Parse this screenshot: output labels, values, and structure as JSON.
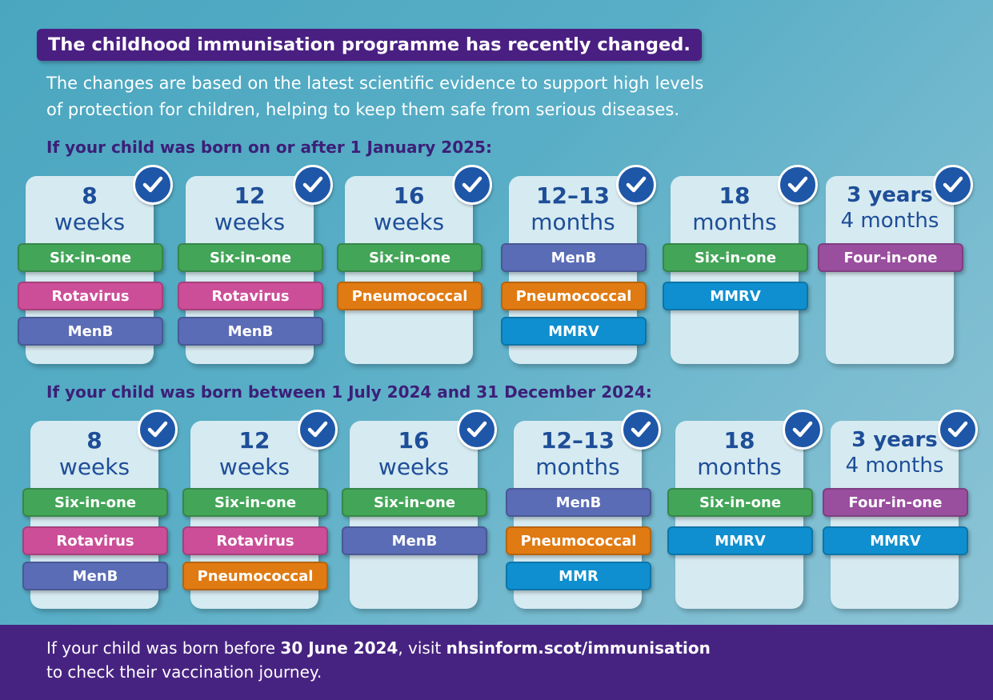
{
  "header": {
    "title": "The childhood immunisation programme has recently changed.",
    "intro_line1": "The changes are based on the latest scientific evidence to support high levels",
    "intro_line2": "of protection for children, helping to keep them safe from serious diseases."
  },
  "colors": {
    "Six-in-one": "#43a558",
    "Rotavirus": "#cc4e98",
    "MenB": "#5a6cb6",
    "Pneumococcal": "#e07a12",
    "MMRV": "#0f8fcf",
    "MMR": "#0f8fcf",
    "Four-in-one": "#9a4e9e"
  },
  "cohorts": [
    {
      "title": "If your child was born on or after 1 January 2025:",
      "cards": [
        {
          "line1": "8",
          "line2": "weeks",
          "vaccines": [
            "Six-in-one",
            "Rotavirus",
            "MenB"
          ]
        },
        {
          "line1": "12",
          "line2": "weeks",
          "vaccines": [
            "Six-in-one",
            "Rotavirus",
            "MenB"
          ]
        },
        {
          "line1": "16",
          "line2": "weeks",
          "vaccines": [
            "Six-in-one",
            "Pneumococcal"
          ]
        },
        {
          "line1": "12–13",
          "line2": "months",
          "vaccines": [
            "MenB",
            "Pneumococcal",
            "MMRV"
          ]
        },
        {
          "line1": "18",
          "line2": "months",
          "vaccines": [
            "Six-in-one",
            "MMRV"
          ]
        },
        {
          "line1": "3 years",
          "line2": "4 months",
          "vaccines": [
            "Four-in-one"
          ]
        }
      ]
    },
    {
      "title": "If your child was born between 1 July 2024 and 31 December 2024:",
      "cards": [
        {
          "line1": "8",
          "line2": "weeks",
          "vaccines": [
            "Six-in-one",
            "Rotavirus",
            "MenB"
          ]
        },
        {
          "line1": "12",
          "line2": "weeks",
          "vaccines": [
            "Six-in-one",
            "Rotavirus",
            "Pneumococcal"
          ]
        },
        {
          "line1": "16",
          "line2": "weeks",
          "vaccines": [
            "Six-in-one",
            "MenB"
          ]
        },
        {
          "line1": "12–13",
          "line2": "months",
          "vaccines": [
            "MenB",
            "Pneumococcal",
            "MMR"
          ]
        },
        {
          "line1": "18",
          "line2": "months",
          "vaccines": [
            "Six-in-one",
            "MMRV"
          ]
        },
        {
          "line1": "3 years",
          "line2": "4 months",
          "vaccines": [
            "Four-in-one",
            "MMRV"
          ]
        }
      ]
    }
  ],
  "footer": {
    "part1": "If your child was born before ",
    "date": "30 June 2024",
    "part2": ", visit ",
    "link": "nhsinform.scot/immunisation",
    "line2": "to check their vaccination journey."
  }
}
